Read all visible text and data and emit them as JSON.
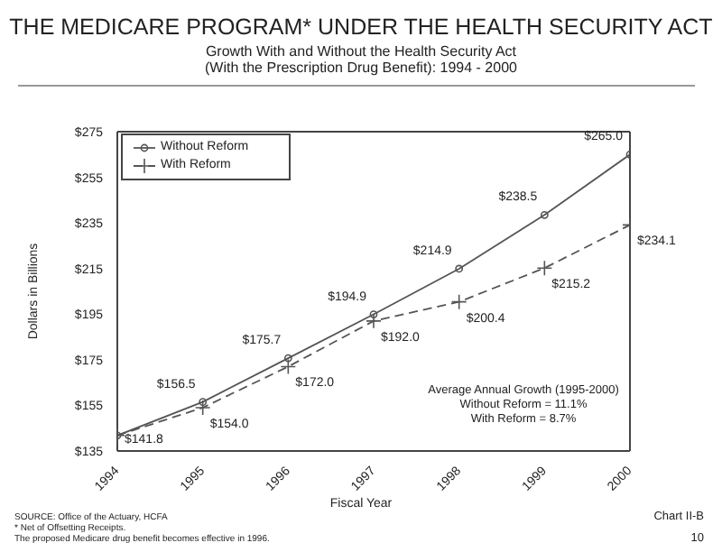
{
  "chart_data": {
    "type": "line",
    "title": "THE MEDICARE PROGRAM* UNDER THE HEALTH SECURITY ACT",
    "subtitle": "Growth With and Without the Health Security Act\n(With the Prescription Drug Benefit):  1994 - 2000",
    "xlabel": "Fiscal Year",
    "ylabel": "Dollars in Billions",
    "x": [
      1994,
      1995,
      1996,
      1997,
      1998,
      1999,
      2000
    ],
    "series": [
      {
        "name": "Without Reform",
        "color": "#555555",
        "marker": "circle",
        "line_style": "solid",
        "values": [
          141.8,
          156.5,
          175.7,
          194.9,
          214.9,
          238.5,
          265.0
        ],
        "value_labels": [
          "$141.8",
          "$156.5",
          "$175.7",
          "$194.9",
          "$214.9",
          "$238.5",
          "$265.0"
        ]
      },
      {
        "name": "With Reform",
        "color": "#555555",
        "marker": "cross",
        "line_style": "dashed",
        "values": [
          141.8,
          154.0,
          172.0,
          192.0,
          200.4,
          215.2,
          234.1
        ],
        "value_labels": [
          null,
          "$154.0",
          "$172.0",
          "$192.0",
          "$200.4",
          "$215.2",
          "$234.1"
        ]
      }
    ],
    "xlim": [
      1994,
      2000
    ],
    "xticks": [
      1994,
      1995,
      1996,
      1997,
      1998,
      1999,
      2000
    ],
    "ylim": [
      135,
      275
    ],
    "yticks": [
      {
        "value": 135,
        "label": "$135"
      },
      {
        "value": 155,
        "label": "$155"
      },
      {
        "value": 175,
        "label": "$175"
      },
      {
        "value": 195,
        "label": "$195"
      },
      {
        "value": 215,
        "label": "$215"
      },
      {
        "value": 235,
        "label": "$235"
      },
      {
        "value": 255,
        "label": "$255"
      },
      {
        "value": 275,
        "label": "$275"
      }
    ],
    "grid": false,
    "legend": "top left",
    "annotations": [
      "Average Annual Growth (1995-2000)\nWithout Reform = 11.1%\nWith Reform = 8.7%",
      "SOURCE:  Office of the Actuary, HCFA",
      "*  Net of Offsetting Receipts.",
      "The proposed Medicare drug benefit becomes effective in 1996.",
      "Chart II-B",
      "10"
    ]
  }
}
